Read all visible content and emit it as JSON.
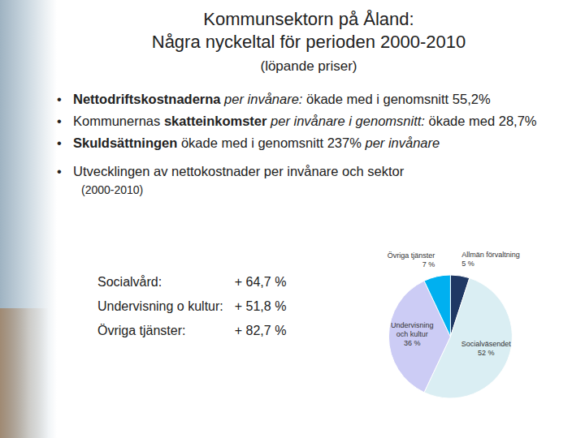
{
  "title": [
    "Kommunsektorn på Åland:",
    "Några nyckeltal för perioden 2000-2010"
  ],
  "subtitle": "(löpande priser)",
  "bullets": [
    [
      {
        "text": "Nettodriftskostnaderna",
        "style": "bold"
      },
      {
        "text": " per invånare:",
        "style": "italic"
      },
      {
        "text": " ökade med i genomsnitt 55,2%",
        "style": "normal"
      }
    ],
    [
      {
        "text": "Kommunernas ",
        "style": "normal"
      },
      {
        "text": "skatteinkomster",
        "style": "bold"
      },
      {
        "text": " per invånare i genomsnitt:",
        "style": "italic"
      },
      {
        "text": " ökade med 28,7%",
        "style": "normal"
      }
    ],
    [
      {
        "text": "Skuldsättningen",
        "style": "bold"
      },
      {
        "text": " ökade med i genomsnitt 237% ",
        "style": "normal"
      },
      {
        "text": "per invånare",
        "style": "italic"
      }
    ],
    [
      {
        "text": "Utvecklingen av nettokostnader per invånare och sektor",
        "style": "normal"
      }
    ]
  ],
  "bullet_note": "(2000-2010)",
  "sector_table": [
    [
      "Socialvård:",
      "+ 64,7 %"
    ],
    [
      "Undervisning o kultur:",
      "+ 51,8 %"
    ],
    [
      "Övriga tjänster:",
      "+ 82,7 %"
    ]
  ],
  "chart_data": {
    "type": "pie",
    "categories": [
      "Allmän förvaltning",
      "Socialväsendet",
      "Undervisning och kultur",
      "Övriga tjänster"
    ],
    "values": [
      5,
      52,
      36,
      7
    ],
    "value_labels": [
      "5 %",
      "52 %",
      "36 %",
      "7 %"
    ],
    "colors": [
      "#1f3864",
      "#daeef3",
      "#ccccf5",
      "#00b0f0"
    ],
    "data_labels": true,
    "legend": false
  }
}
